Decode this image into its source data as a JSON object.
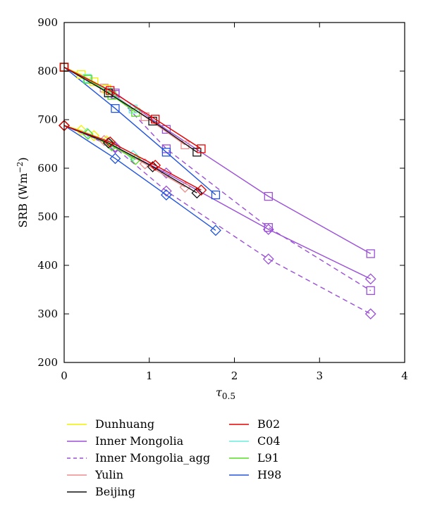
{
  "chart_data": {
    "type": "line",
    "title": "",
    "ylabel_main": "SRB (Wm",
    "ylabel_sup": "−2",
    "ylabel_close": ")",
    "xlabel_main": "τ",
    "xlabel_sub": "0.5",
    "xlim": [
      0,
      4
    ],
    "ylim": [
      200,
      900
    ],
    "xticks": [
      "0",
      "1",
      "2",
      "3",
      "4"
    ],
    "yticks": [
      "200",
      "300",
      "400",
      "500",
      "600",
      "700",
      "800",
      "900"
    ],
    "grid": false,
    "legend_position": "bottom",
    "series": [
      {
        "name": "Dunhuang",
        "color": "#f2f200",
        "dash": false,
        "square": [
          [
            0,
            808
          ],
          [
            0.2,
            793
          ],
          [
            0.35,
            778
          ],
          [
            0.5,
            763
          ]
        ],
        "diamond": [
          [
            0,
            688
          ],
          [
            0.2,
            678
          ],
          [
            0.35,
            667
          ],
          [
            0.5,
            656
          ]
        ]
      },
      {
        "name": "Inner Mongolia",
        "color": "#9b4fd8",
        "dash": false,
        "square": [
          [
            0,
            808
          ],
          [
            0.6,
            755
          ],
          [
            1.2,
            680
          ],
          [
            2.4,
            542
          ],
          [
            3.6,
            424
          ]
        ],
        "diamond": [
          [
            0,
            688
          ],
          [
            0.6,
            644
          ],
          [
            1.2,
            590
          ],
          [
            2.4,
            474
          ],
          [
            3.6,
            372
          ]
        ]
      },
      {
        "name": "Inner Mongolia_agg",
        "color": "#9b4fd8",
        "dash": true,
        "square": [
          [
            0,
            808
          ],
          [
            0.6,
            752
          ],
          [
            1.2,
            640
          ],
          [
            2.4,
            478
          ],
          [
            3.6,
            348
          ]
        ],
        "diamond": [
          [
            0,
            688
          ],
          [
            0.6,
            642
          ],
          [
            1.2,
            553
          ],
          [
            2.4,
            413
          ],
          [
            3.6,
            300
          ]
        ]
      },
      {
        "name": "Yulin",
        "color": "#ee8c8c",
        "dash": false,
        "square": [
          [
            0,
            808
          ],
          [
            0.47,
            765
          ],
          [
            0.95,
            706
          ],
          [
            1.42,
            648
          ]
        ],
        "diamond": [
          [
            0,
            688
          ],
          [
            0.47,
            657
          ],
          [
            0.95,
            609
          ],
          [
            1.42,
            561
          ]
        ]
      },
      {
        "name": "Beijing",
        "color": "#111111",
        "dash": false,
        "square": [
          [
            0,
            808
          ],
          [
            0.52,
            755
          ],
          [
            1.04,
            697
          ],
          [
            1.56,
            633
          ]
        ],
        "diamond": [
          [
            0,
            688
          ],
          [
            0.52,
            652
          ],
          [
            1.04,
            603
          ],
          [
            1.56,
            549
          ]
        ]
      },
      {
        "name": "B02",
        "color": "#e60000",
        "dash": false,
        "square": [
          [
            0,
            808
          ],
          [
            0.54,
            760
          ],
          [
            1.07,
            701
          ],
          [
            1.61,
            640
          ]
        ],
        "diamond": [
          [
            0,
            688
          ],
          [
            0.54,
            654
          ],
          [
            1.07,
            606
          ],
          [
            1.61,
            555
          ]
        ]
      },
      {
        "name": "C04",
        "color": "#66eedd",
        "dash": false,
        "square": [
          [
            0,
            808
          ],
          [
            0.27,
            785
          ],
          [
            0.54,
            756
          ],
          [
            0.81,
            722
          ]
        ],
        "diamond": [
          [
            0,
            688
          ],
          [
            0.27,
            672
          ],
          [
            0.54,
            650
          ],
          [
            0.81,
            626
          ]
        ]
      },
      {
        "name": "L91",
        "color": "#55dd22",
        "dash": false,
        "square": [
          [
            0,
            808
          ],
          [
            0.28,
            783
          ],
          [
            0.56,
            750
          ],
          [
            0.84,
            715
          ]
        ],
        "diamond": [
          [
            0,
            688
          ],
          [
            0.28,
            670
          ],
          [
            0.56,
            646
          ],
          [
            0.84,
            618
          ]
        ]
      },
      {
        "name": "H98",
        "color": "#2255dd",
        "dash": false,
        "square": [
          [
            0,
            808
          ],
          [
            0.6,
            723
          ],
          [
            1.2,
            633
          ],
          [
            1.78,
            545
          ]
        ],
        "diamond": [
          [
            0,
            688
          ],
          [
            0.6,
            620
          ],
          [
            1.2,
            545
          ],
          [
            1.78,
            472
          ]
        ]
      }
    ],
    "legend_columns": [
      [
        "Dunhuang",
        "Inner Mongolia",
        "Inner Mongolia_agg",
        "Yulin",
        "Beijing"
      ],
      [
        "B02",
        "C04",
        "L91",
        "H98"
      ]
    ]
  }
}
